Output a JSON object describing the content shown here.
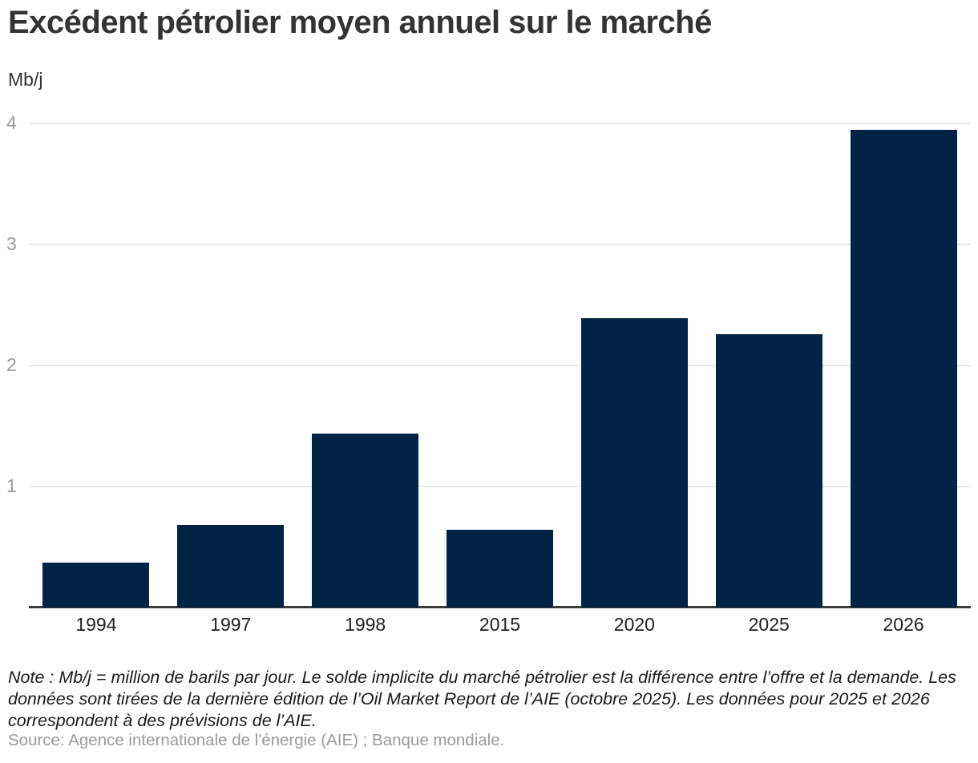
{
  "header": {
    "title": "Excédent pétrolier moyen annuel sur le marché",
    "unit": "Mb/j"
  },
  "chart_data": {
    "type": "bar",
    "categories": [
      "1994",
      "1997",
      "1998",
      "2015",
      "2020",
      "2025",
      "2026"
    ],
    "values": [
      0.37,
      0.68,
      1.44,
      0.64,
      2.39,
      2.26,
      3.95
    ],
    "title": "Excédent pétrolier moyen annuel sur le marché",
    "xlabel": "",
    "ylabel": "Mb/j",
    "ylim": [
      0,
      4.18
    ],
    "yticks": [
      1,
      2,
      3,
      4
    ],
    "grid": true,
    "legend": "none",
    "bar_color": "#022346",
    "gridline_color": "#e9e9e9",
    "axis_line_color": "#3c3c3c",
    "tick_label_color": "#9b9b9b"
  },
  "footer": {
    "note": "Note : Mb/j = million de barils par jour. Le solde implicite du marché pétrolier est la différence entre l’offre et la demande. Les données sont tirées de la dernière édition de l’Oil Market Report de l’AIE (octobre 2025). Les données pour 2025 et 2026 correspondent à des prévisions de l’AIE.",
    "source": "Source: Agence internationale de l'énergie (AIE) ; Banque mondiale."
  }
}
